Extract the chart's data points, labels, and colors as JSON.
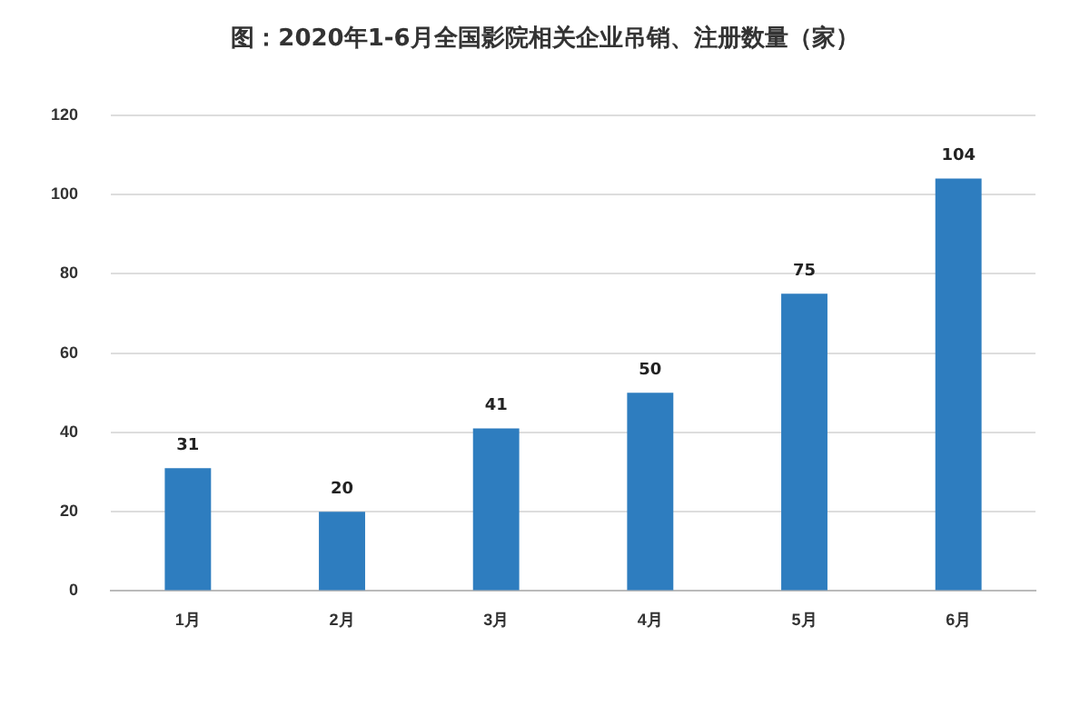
{
  "chart_data": {
    "type": "bar",
    "title": "图：2020年1-6月全国影院相关企业吊销、注册数量（家）",
    "categories": [
      "1月",
      "2月",
      "3月",
      "4月",
      "5月",
      "6月"
    ],
    "values": [
      31,
      20,
      41,
      50,
      75,
      104
    ],
    "color": "#2e7dbf",
    "ylim": [
      0,
      120
    ],
    "yticks": [
      0,
      20,
      40,
      60,
      80,
      100,
      120
    ],
    "grid": "y",
    "data_labels": true
  }
}
